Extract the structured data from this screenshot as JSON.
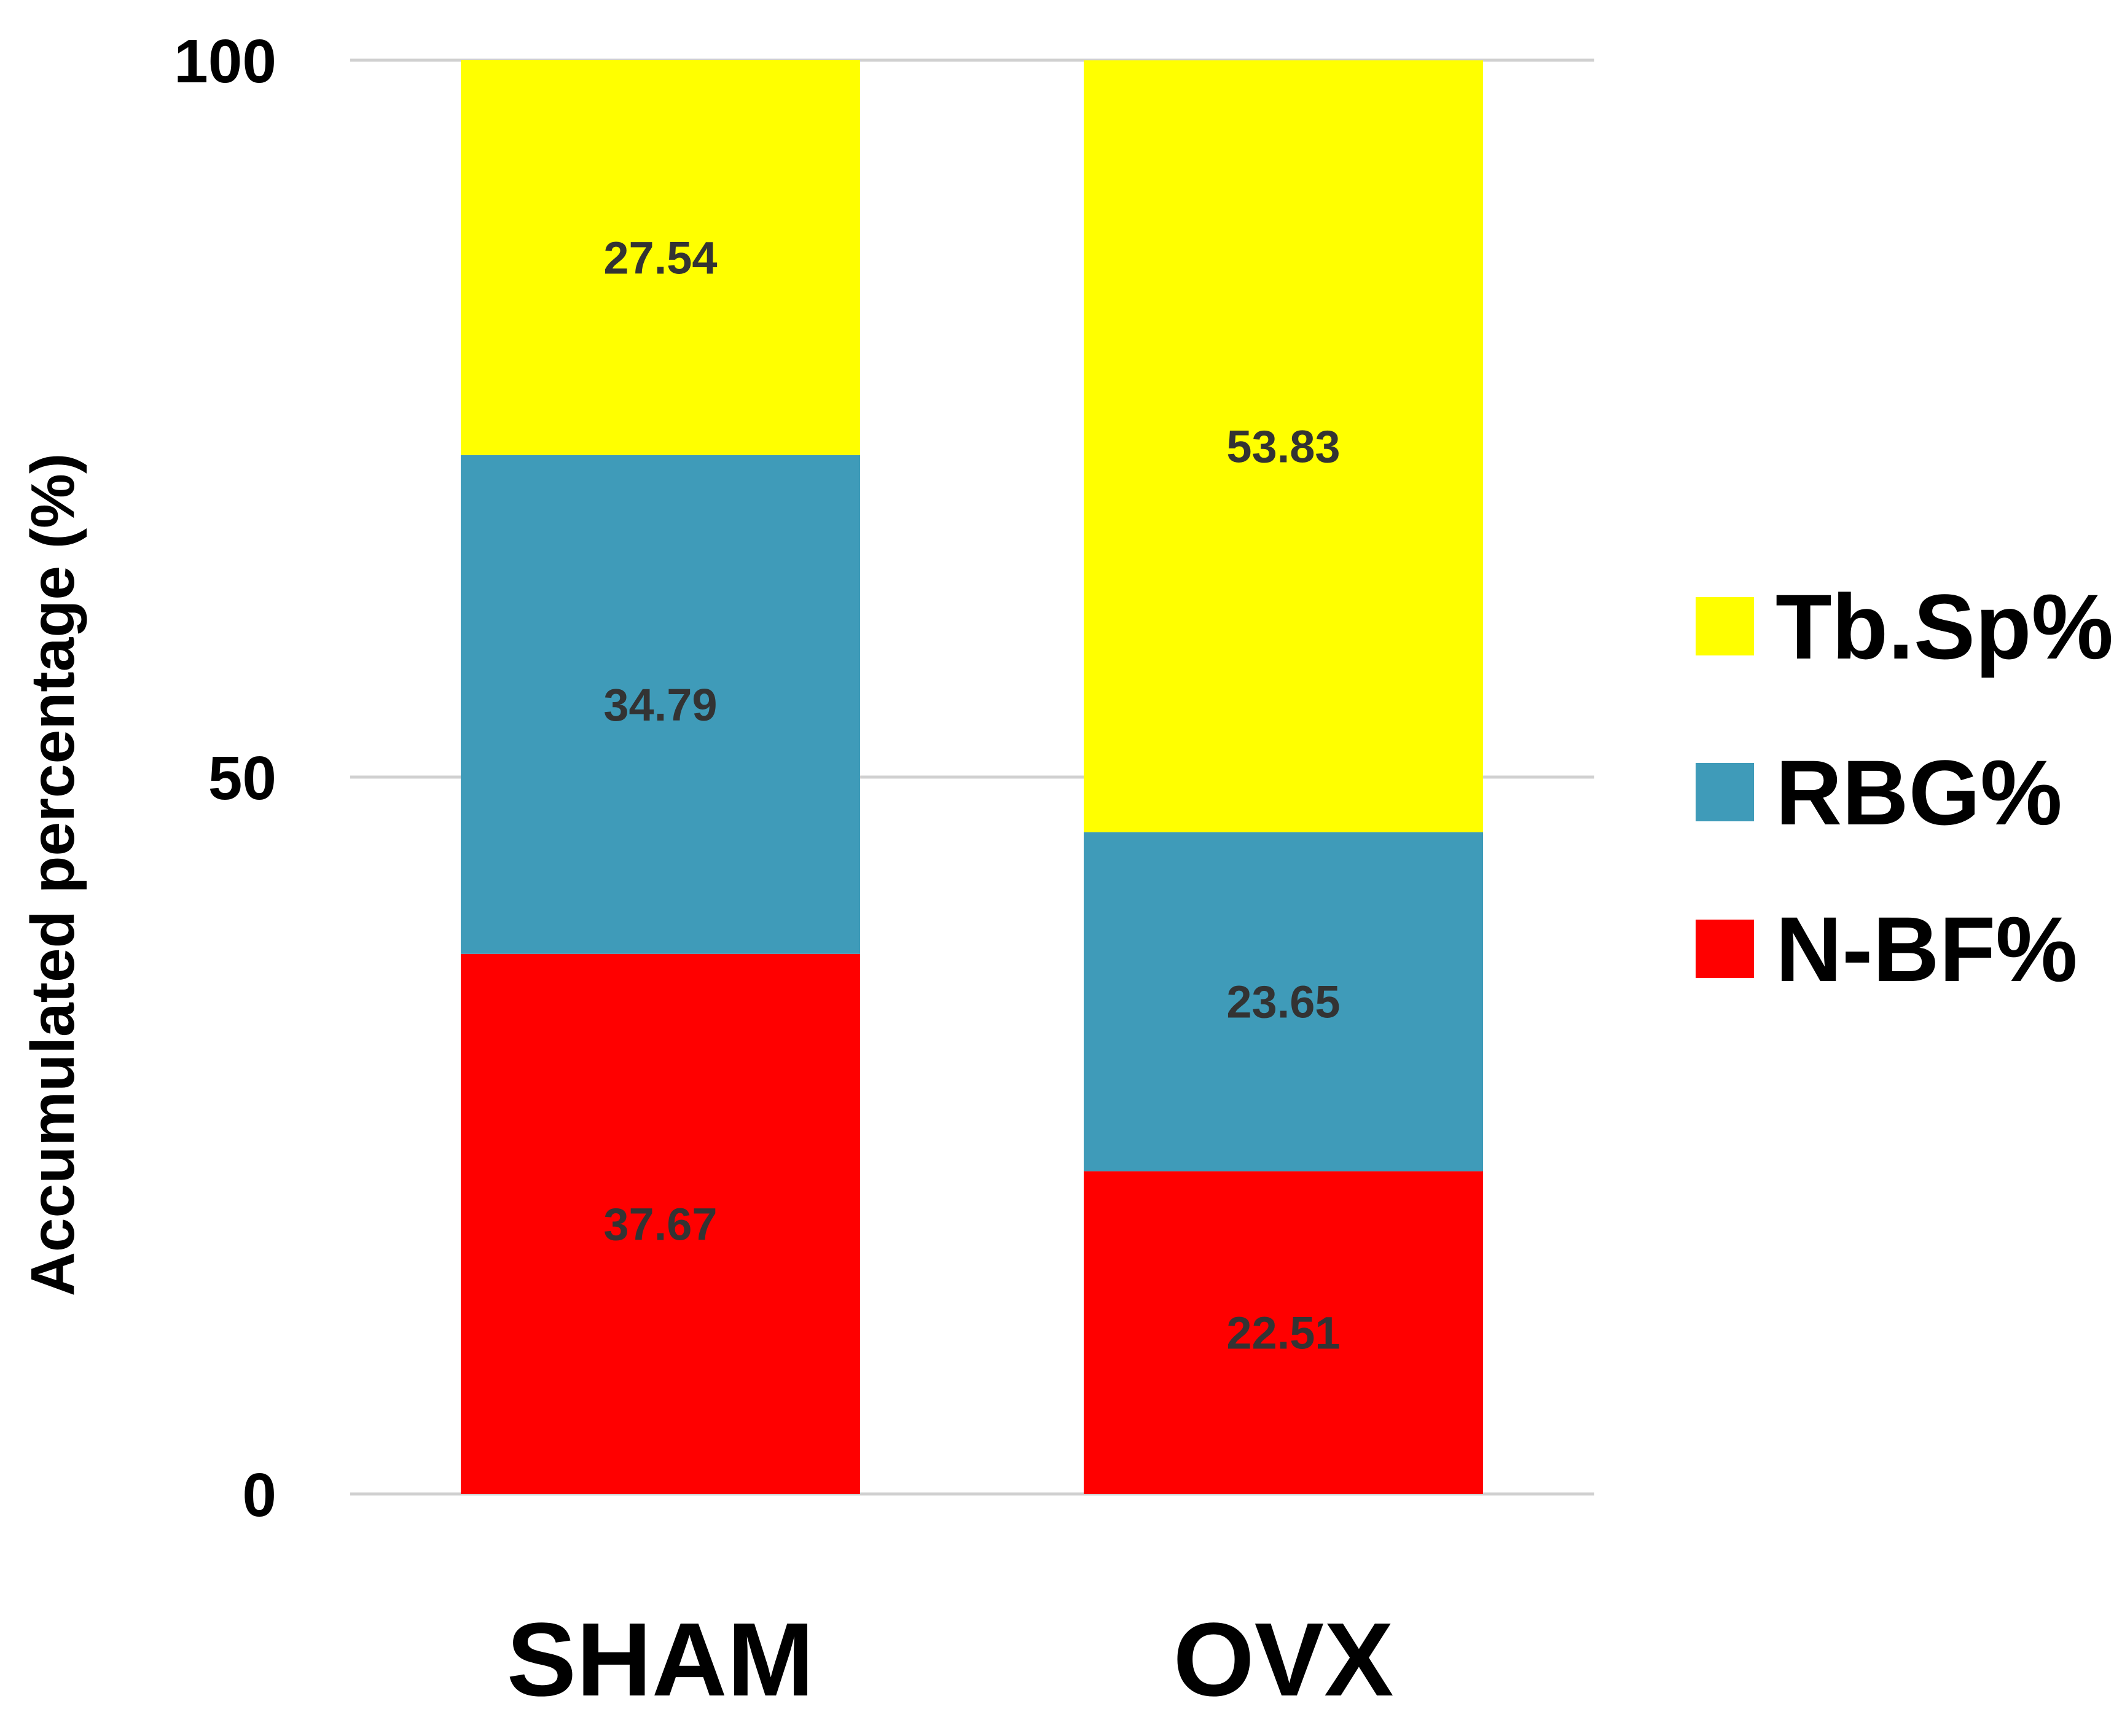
{
  "chart_data": {
    "type": "stacked-bar",
    "title": "",
    "xlabel": "",
    "ylabel": "Accumulated percentage (%)",
    "ylim": [
      0,
      100
    ],
    "yticks": [
      0,
      50,
      100
    ],
    "grid": true,
    "legend_position": "right",
    "categories": [
      "SHAM",
      "OVX"
    ],
    "series": [
      {
        "name": "N-BF%",
        "color": "#ff0000",
        "values": [
          37.67,
          22.51
        ]
      },
      {
        "name": "RBG%",
        "color": "#3f9bb9",
        "values": [
          34.79,
          23.65
        ]
      },
      {
        "name": "Tb.Sp%",
        "color": "#ffff00",
        "values": [
          27.54,
          53.83
        ]
      }
    ],
    "data_labels": [
      [
        "37.67",
        "22.51"
      ],
      [
        "34.79",
        "23.65"
      ],
      [
        "27.54",
        "53.83"
      ]
    ],
    "legend_order": [
      "Tb.Sp%",
      "RBG%",
      "N-BF%"
    ]
  }
}
